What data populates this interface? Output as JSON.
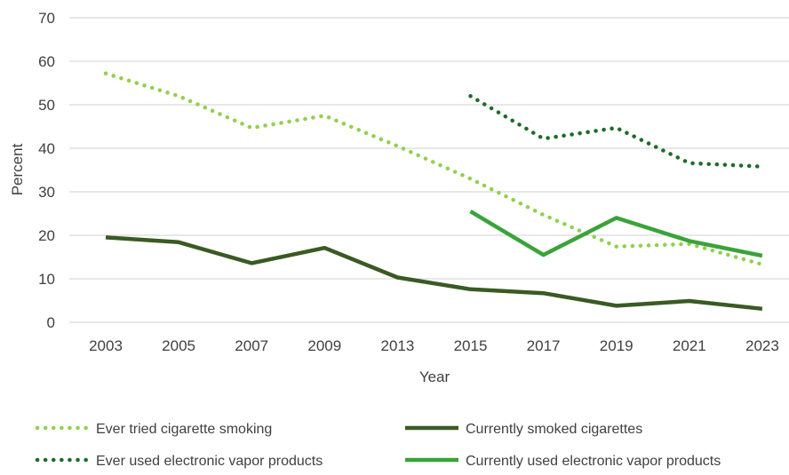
{
  "chart_data": {
    "type": "line",
    "title": "",
    "xlabel": "Year",
    "ylabel": "Percent",
    "categories": [
      "2003",
      "2005",
      "2007",
      "2009",
      "2013",
      "2015",
      "2017",
      "2019",
      "2021",
      "2023"
    ],
    "ylim": [
      0,
      70
    ],
    "yticks": [
      0,
      10,
      20,
      30,
      40,
      50,
      60,
      70
    ],
    "grid": "horizontal",
    "legend_position": "bottom",
    "series": [
      {
        "name": "Ever tried cigarette smoking",
        "style": "dotted",
        "color": "#92d050",
        "values": [
          57.2,
          52.0,
          44.7,
          47.5,
          40.5,
          33.0,
          24.7,
          17.4,
          18.0,
          13.3
        ]
      },
      {
        "name": "Currently smoked cigarettes",
        "style": "solid",
        "color": "#3a5a24",
        "values": [
          19.5,
          18.4,
          13.6,
          17.1,
          10.3,
          7.6,
          6.7,
          3.8,
          4.9,
          3.1
        ]
      },
      {
        "name": "Ever used electronic vapor products",
        "style": "dotted",
        "color": "#1e6b29",
        "values": [
          null,
          null,
          null,
          null,
          null,
          52.0,
          42.2,
          44.7,
          36.6,
          35.8
        ]
      },
      {
        "name": "Currently used electronic vapor products",
        "style": "solid",
        "color": "#3aa33a",
        "values": [
          null,
          null,
          null,
          null,
          null,
          25.5,
          15.5,
          24.0,
          18.7,
          15.3
        ]
      }
    ]
  }
}
